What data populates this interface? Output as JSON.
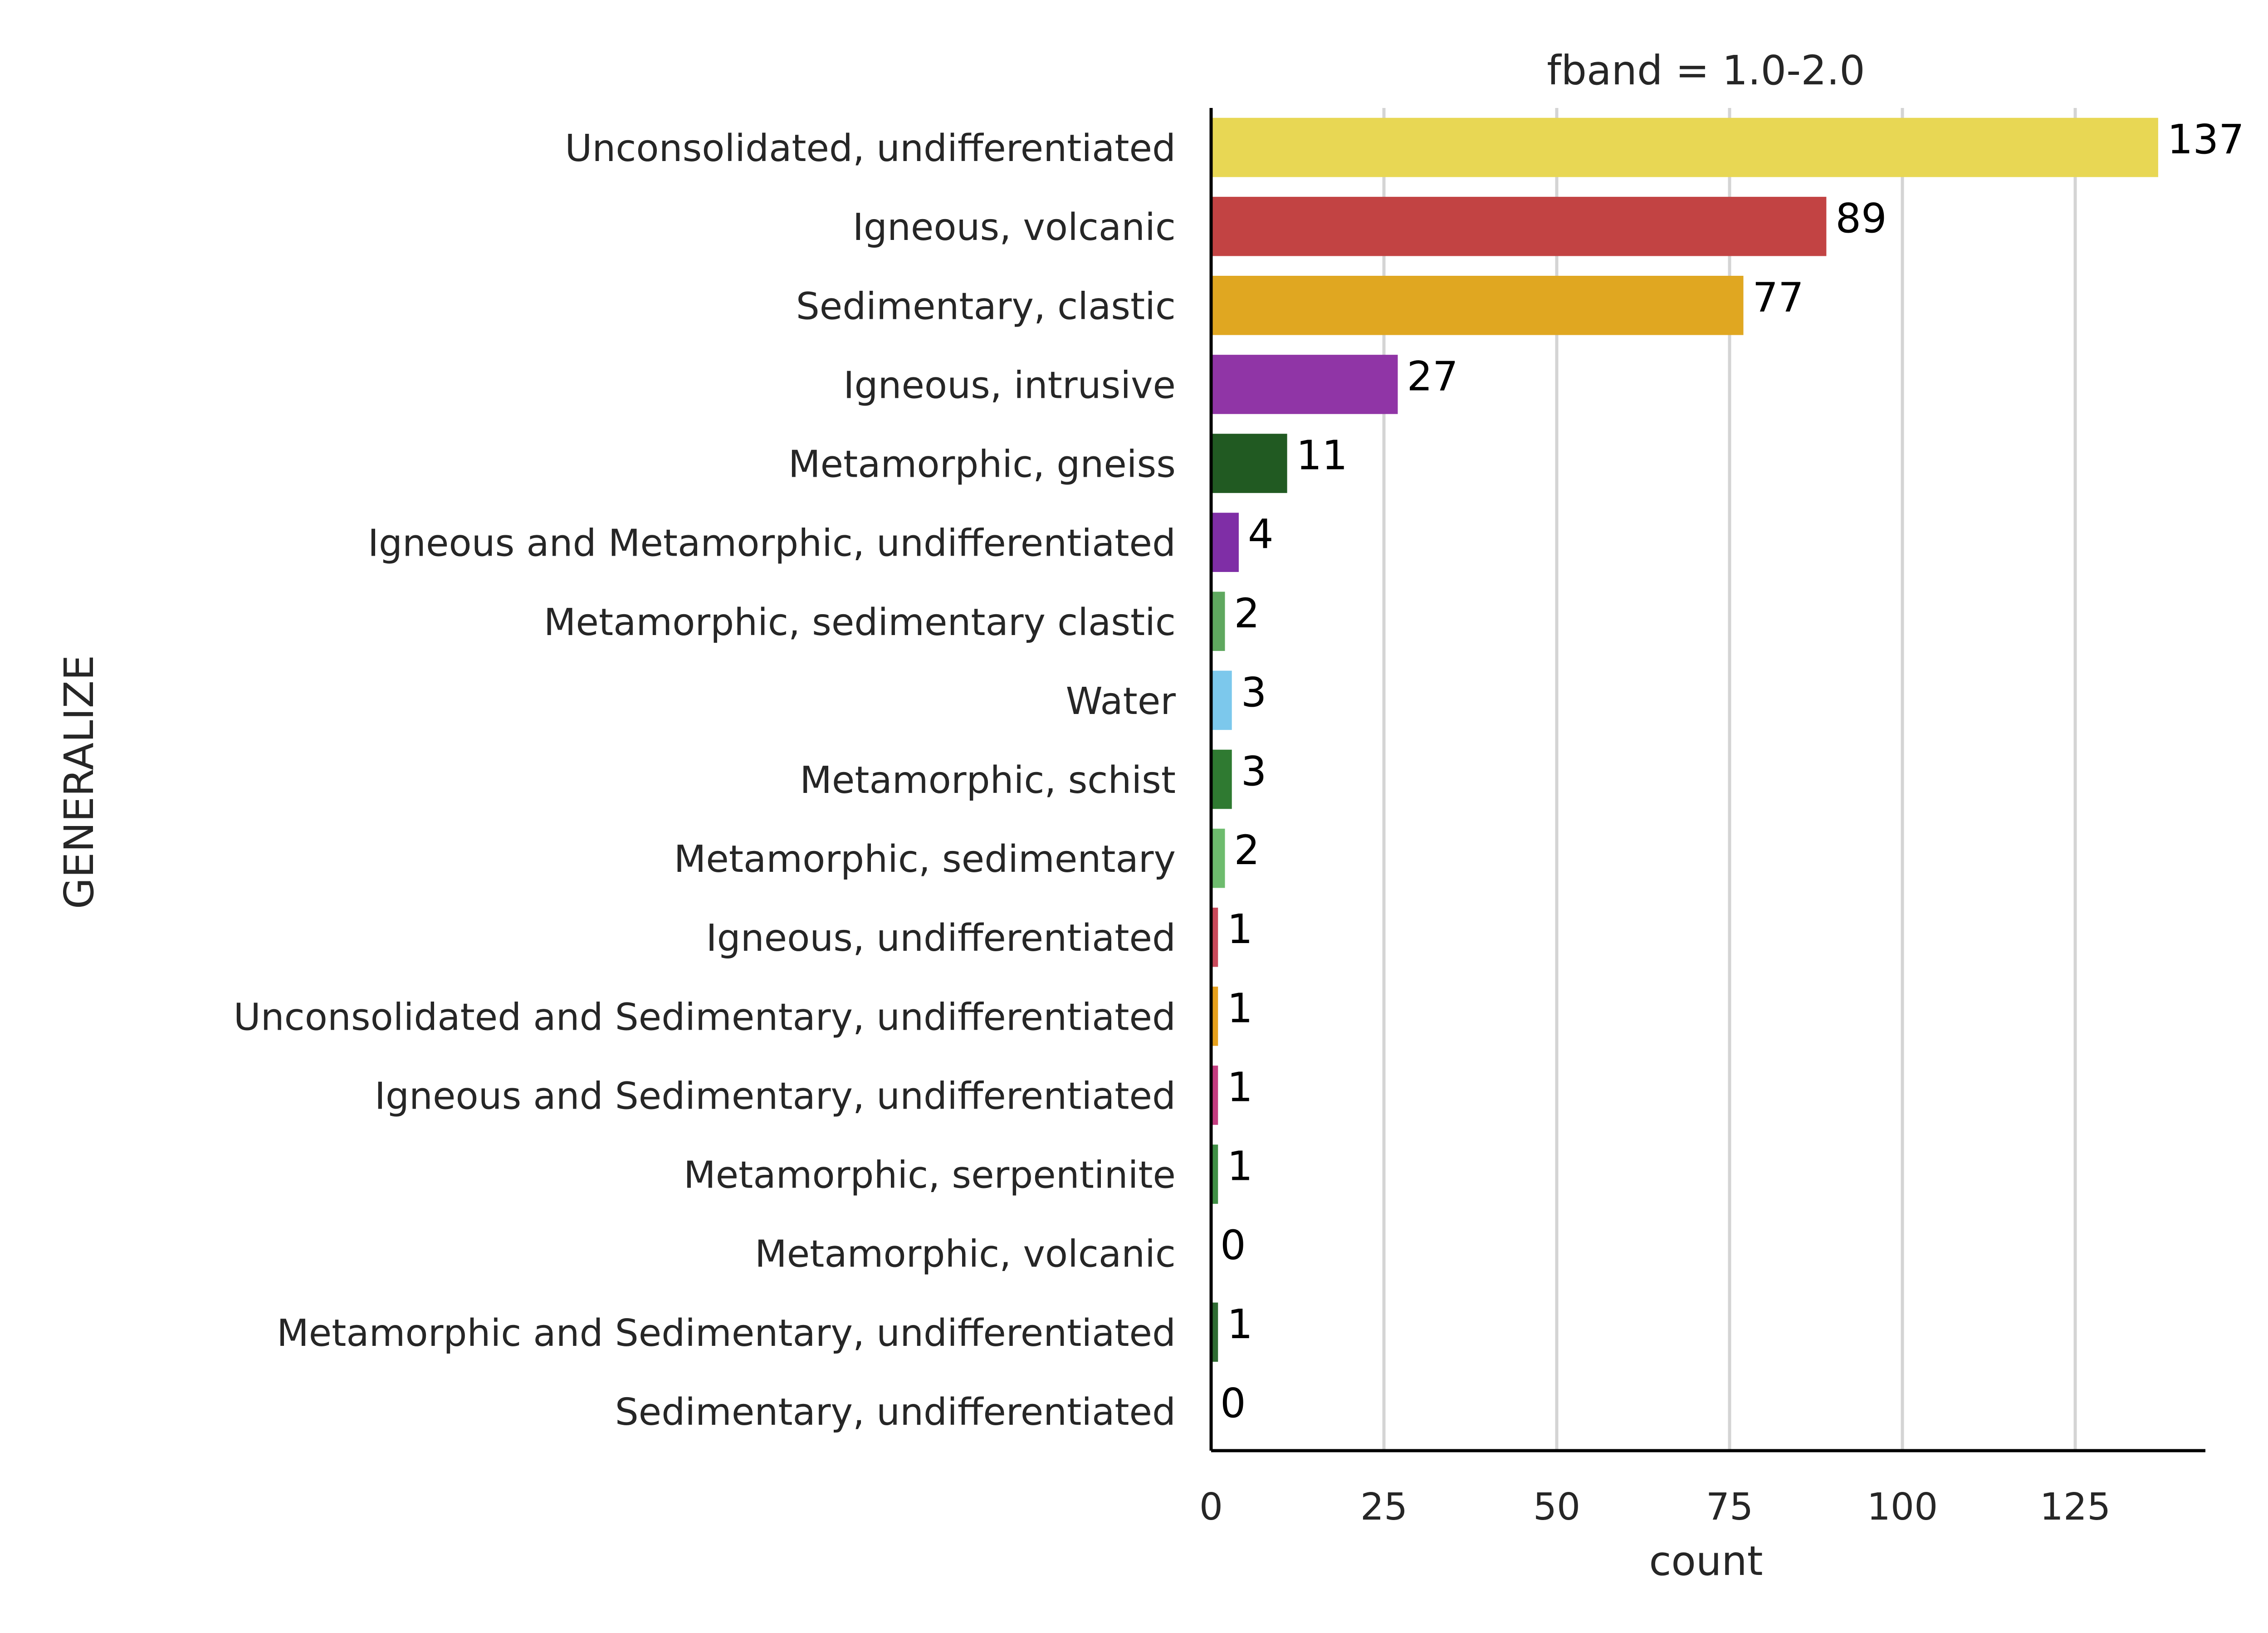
{
  "chart_data": {
    "type": "bar",
    "orientation": "horizontal",
    "title": "fband = 1.0-2.0",
    "xlabel": "count",
    "ylabel": "GENERALIZE",
    "xlim": [
      0,
      144
    ],
    "xticks": [
      0,
      25,
      50,
      75,
      100,
      125
    ],
    "grid": "vertical",
    "categories": [
      "Unconsolidated, undifferentiated",
      "Igneous, volcanic",
      "Sedimentary, clastic",
      "Igneous, intrusive",
      "Metamorphic, gneiss",
      "Igneous and Metamorphic, undifferentiated",
      "Metamorphic, sedimentary clastic",
      "Water",
      "Metamorphic, schist",
      "Metamorphic, sedimentary",
      "Igneous, undifferentiated",
      "Unconsolidated and Sedimentary, undifferentiated",
      "Igneous and Sedimentary, undifferentiated",
      "Metamorphic, serpentinite",
      "Metamorphic, volcanic",
      "Metamorphic and Sedimentary, undifferentiated",
      "Sedimentary, undifferentiated"
    ],
    "values": [
      137,
      89,
      77,
      27,
      11,
      4,
      2,
      3,
      3,
      2,
      1,
      1,
      1,
      1,
      0,
      1,
      0
    ],
    "colors": [
      "#e8d754",
      "#c24343",
      "#e0a721",
      "#9035a6",
      "#215a22",
      "#7f2ea6",
      "#5fa85f",
      "#7cc8ec",
      "#2f7a31",
      "#6ebc6e",
      "#c9495a",
      "#e6a01c",
      "#c43c80",
      "#3f8f45",
      "#7a7a7a",
      "#2e6b32",
      "#8a5a3a"
    ]
  }
}
